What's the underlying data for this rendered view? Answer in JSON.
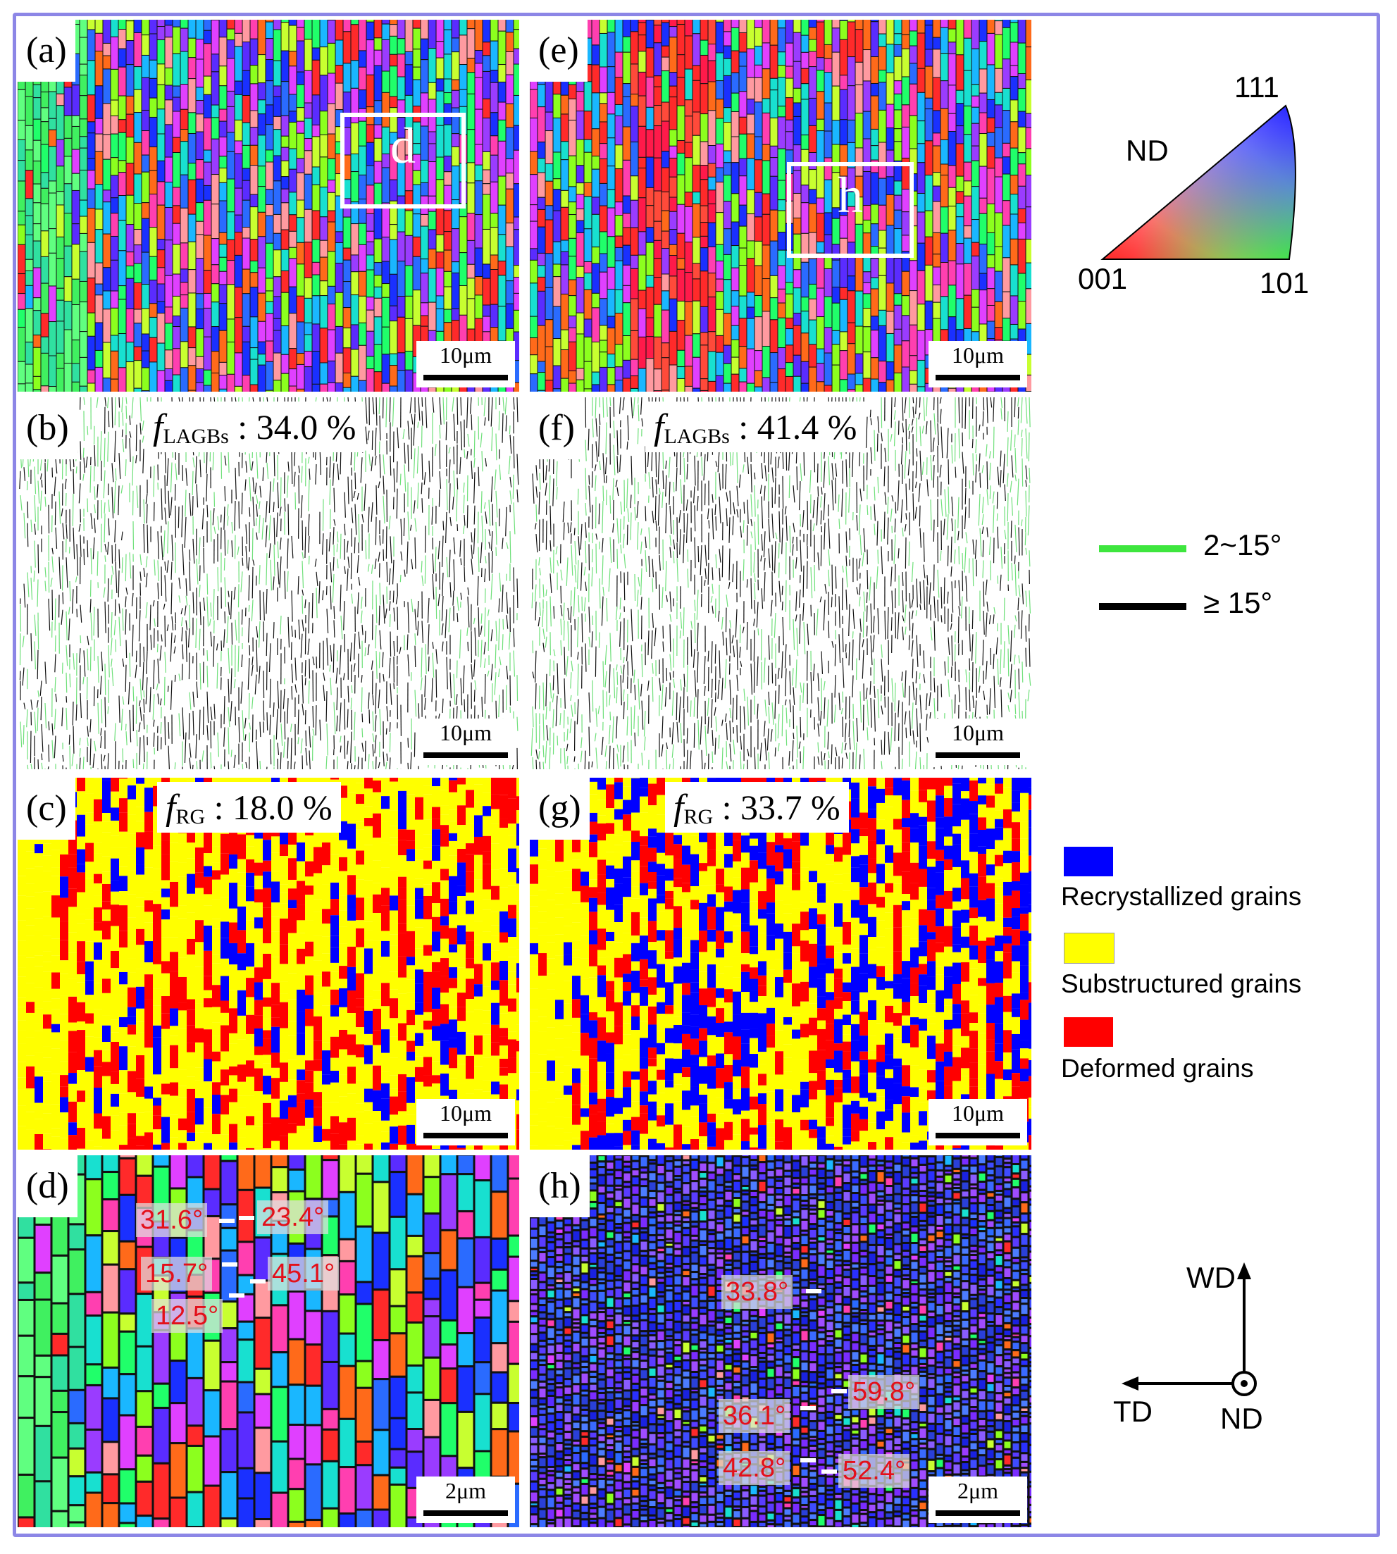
{
  "panels": {
    "a": {
      "label": "(a)",
      "scale": "10μm",
      "box_label": "d"
    },
    "b": {
      "label": "(b)",
      "scale": "10μm",
      "metric_symbol": "f",
      "metric_sub": "LAGBs",
      "metric_value": ": 34.0 %"
    },
    "c": {
      "label": "(c)",
      "scale": "10μm",
      "metric_symbol": "f",
      "metric_sub": "RG",
      "metric_value": ": 18.0 %"
    },
    "d": {
      "label": "(d)",
      "scale": "2μm",
      "angles": [
        "31.6°",
        "23.4°",
        "15.7°",
        "45.1°",
        "12.5°"
      ]
    },
    "e": {
      "label": "(e)",
      "scale": "10μm",
      "box_label": "h"
    },
    "f": {
      "label": "(f)",
      "scale": "10μm",
      "metric_symbol": "f",
      "metric_sub": "LAGBs",
      "metric_value": ": 41.4 %"
    },
    "g": {
      "label": "(g)",
      "scale": "10μm",
      "metric_symbol": "f",
      "metric_sub": "RG",
      "metric_value": ": 33.7 %"
    },
    "h": {
      "label": "(h)",
      "scale": "2μm",
      "angles": [
        "33.8°",
        "59.8°",
        "36.1°",
        "42.8°",
        "52.4°"
      ]
    }
  },
  "ipf_legend": {
    "top": "111",
    "left": "001",
    "right": "101",
    "axis": "ND"
  },
  "boundary_legend": [
    {
      "label": "2~15°",
      "color": "#3ee63e"
    },
    {
      "label": "≥ 15°",
      "color": "#000000"
    }
  ],
  "grain_legend": [
    {
      "label": "Recrystallized grains",
      "color": "#0000ff"
    },
    {
      "label": "Substructured grains",
      "color": "#ffff00"
    },
    {
      "label": "Deformed grains",
      "color": "#ff0000"
    }
  ],
  "axes": {
    "up": "WD",
    "left": "TD",
    "out": "ND"
  }
}
